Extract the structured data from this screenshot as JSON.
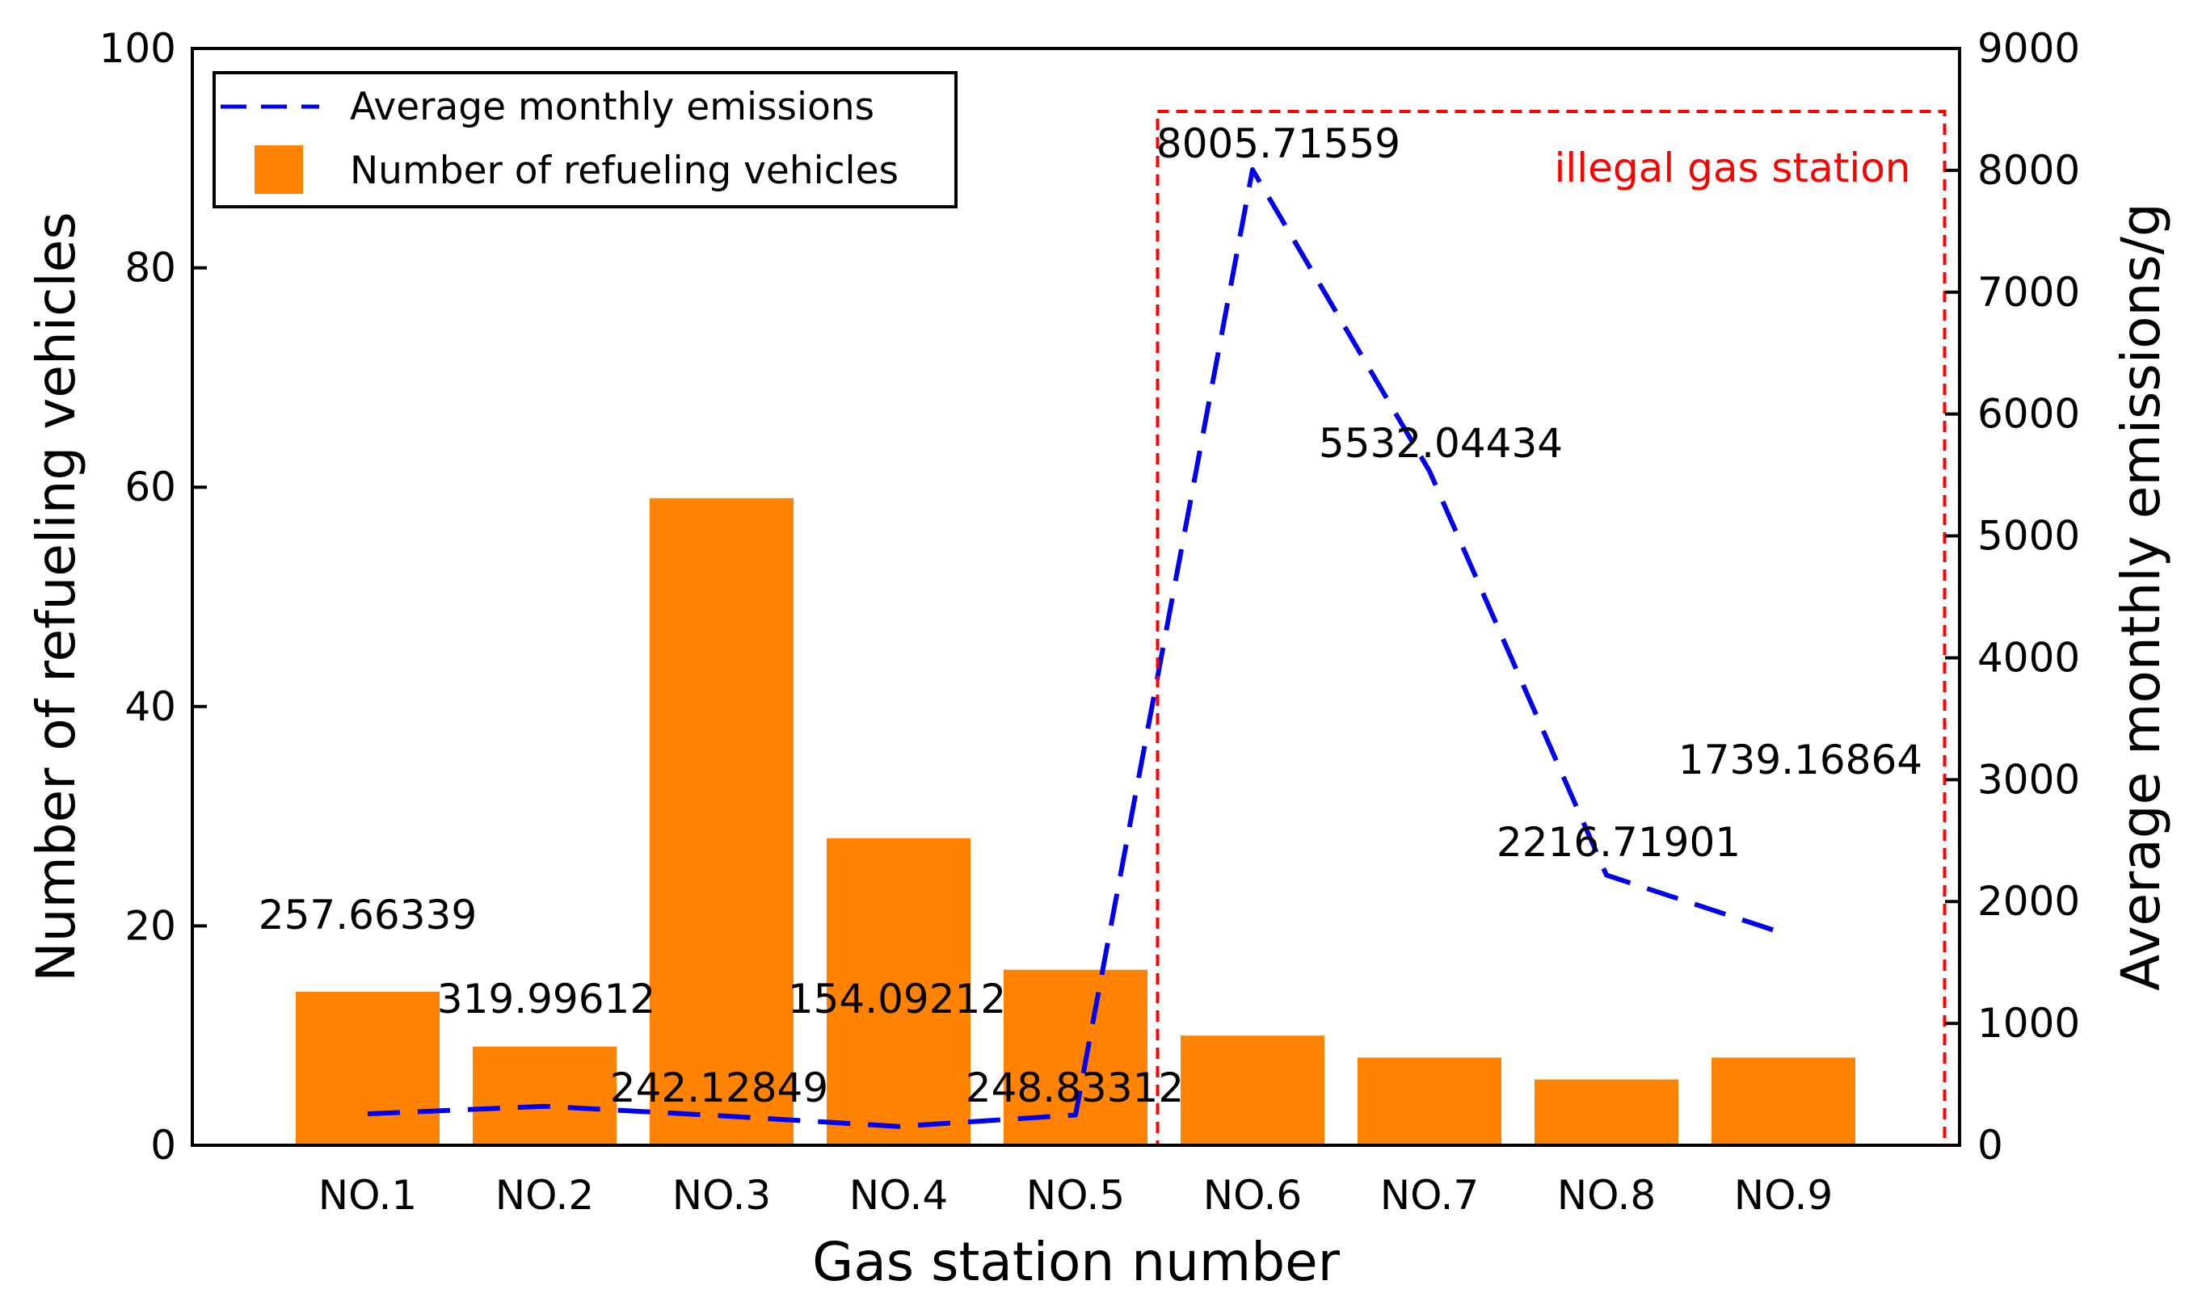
{
  "chart_data": {
    "type": "bar",
    "categories": [
      "NO.1",
      "NO.2",
      "NO.3",
      "NO.4",
      "NO.5",
      "NO.6",
      "NO.7",
      "NO.8",
      "NO.9"
    ],
    "xlabel": "Gas station number",
    "ylabel": "Number of refueling vehicles",
    "y2label": "Average monthly emissions/g",
    "ylim": [
      0,
      100
    ],
    "y2lim": [
      0,
      9000
    ],
    "yticks": [
      "0",
      "20",
      "40",
      "60",
      "80",
      "100"
    ],
    "y2ticks": [
      "0",
      "1000",
      "2000",
      "3000",
      "4000",
      "5000",
      "6000",
      "7000",
      "8000",
      "9000"
    ],
    "grid": false,
    "legend_position": "top-left",
    "series": [
      {
        "name": "Number of refueling vehicles",
        "type": "bar",
        "axis": "left",
        "color": "#ff8200",
        "values": [
          14,
          9,
          59,
          28,
          16,
          10,
          8,
          6,
          8
        ]
      },
      {
        "name": "Average monthly emissions",
        "type": "line",
        "axis": "right",
        "style": "dashed",
        "color": "#0000ee",
        "values": [
          257.66339,
          319.99612,
          242.12849,
          154.09212,
          248.83312,
          8005.71559,
          5532.04434,
          2216.71901,
          1739.16864
        ],
        "labels": [
          "257.66339",
          "319.99612",
          "242.12849",
          "154.09212",
          "248.83312",
          "8005.71559",
          "5532.04434",
          "2216.71901",
          "1739.16864"
        ]
      }
    ],
    "annotation": {
      "text": "illegal gas station",
      "color": "#ff0000",
      "x_range": [
        "NO.6",
        "NO.9"
      ]
    }
  }
}
